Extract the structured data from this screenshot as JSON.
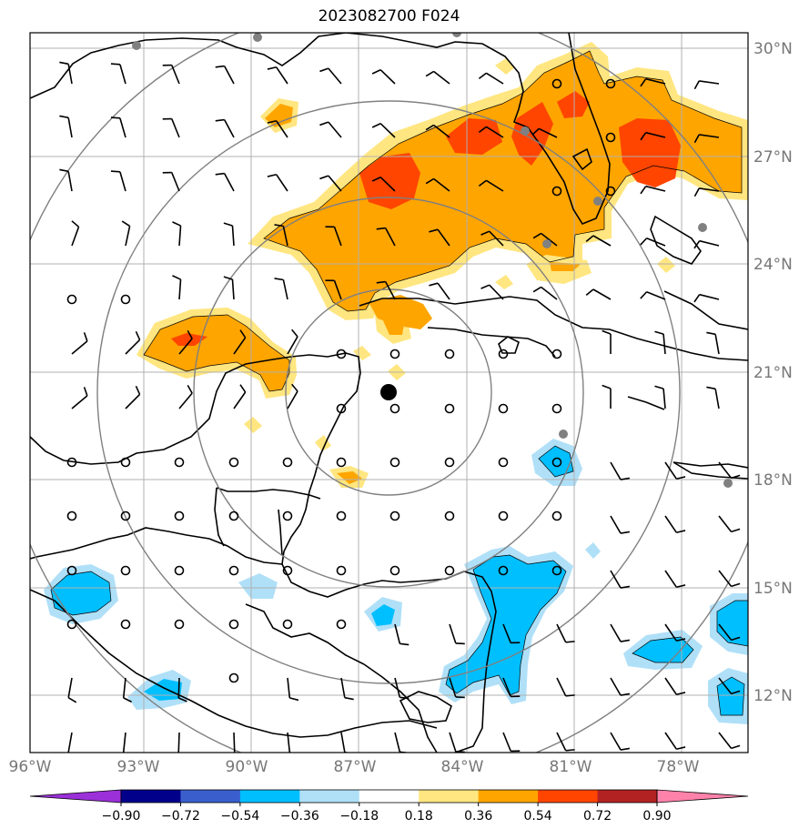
{
  "title": "2023082700 F024",
  "map": {
    "lon_ticks": [
      "96°W",
      "93°W",
      "90°W",
      "87°W",
      "84°W",
      "81°W",
      "78°W"
    ],
    "lat_ticks": [
      "30°N",
      "27°N",
      "24°N",
      "21°N",
      "18°N",
      "15°N",
      "12°N"
    ],
    "extent": {
      "lon": [
        -96.0,
        -76.0
      ],
      "lat": [
        10.4,
        30.4
      ]
    },
    "center_marker": {
      "lon": -86.7,
      "lat": 20.5
    },
    "range_rings_deg": [
      3,
      6,
      9,
      12
    ]
  },
  "colorbar": {
    "labels": [
      "−0.90",
      "−0.72",
      "−0.54",
      "−0.36",
      "−0.18",
      "0.18",
      "0.36",
      "0.54",
      "0.72",
      "0.90"
    ],
    "colors": [
      "#9b30d9",
      "#00008b",
      "#3a5fcd",
      "#00bfff",
      "#b0e0f8",
      "#ffffff",
      "#ffe680",
      "#ffa500",
      "#ff4500",
      "#b22222",
      "#ff82ab"
    ],
    "extend": "both"
  },
  "colors": {
    "land_line": "#000000",
    "grid": "#b0b0b0",
    "ring": "#808080",
    "station": "#808080",
    "center": "#000000"
  }
}
